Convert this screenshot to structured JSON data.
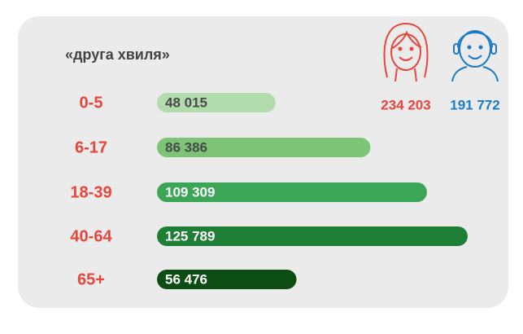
{
  "chart_data": {
    "type": "hbar",
    "title": "«друга хвиля»",
    "categories": [
      "0-5",
      "6-17",
      "18-39",
      "40-64",
      "65+"
    ],
    "values": [
      48015,
      86386,
      109309,
      125789,
      56476
    ],
    "value_labels": [
      "48 015",
      "86 386",
      "109 309",
      "125 789",
      "56 476"
    ],
    "colors": [
      "#b3dcae",
      "#7cc576",
      "#3ba656",
      "#1f7e35",
      "#0b4d12"
    ],
    "label_colors": [
      "#4a4a4a",
      "#4a4a4a",
      "#ffffff",
      "#ffffff",
      "#ffffff"
    ],
    "annotations": [
      {
        "text": "234 203",
        "color": "#e8453c"
      },
      {
        "text": "191 772",
        "color": "#1b7bc6"
      }
    ]
  }
}
